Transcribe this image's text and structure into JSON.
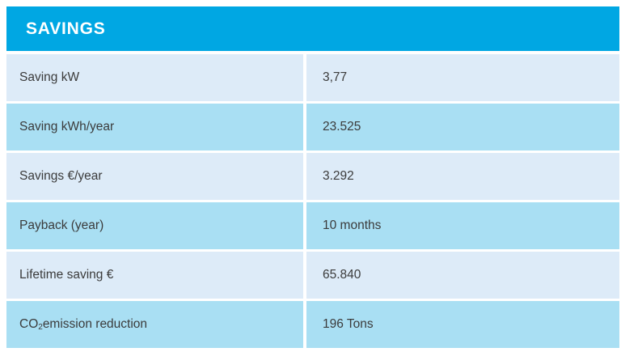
{
  "table": {
    "title": "SAVINGS",
    "rows": [
      {
        "label": "Saving kW",
        "value": "3,77"
      },
      {
        "label": "Saving kWh/year",
        "value": "23.525"
      },
      {
        "label": "Savings €/year",
        "value": "3.292"
      },
      {
        "label": "Payback (year)",
        "value": "10 months"
      },
      {
        "label": "Lifetime saving €",
        "value": "65.840"
      },
      {
        "label": "CO2 emission reduction",
        "label_parts": {
          "prefix": "CO",
          "subscript": "2",
          "suffix": " emission reduction"
        },
        "value": "196 Tons"
      }
    ],
    "colors": {
      "header_bg": "#00a7e3",
      "row_light": "#ddebf8",
      "row_dark": "#a9dff3",
      "text_dark": "#3b3b3b",
      "header_text": "#ffffff"
    }
  }
}
